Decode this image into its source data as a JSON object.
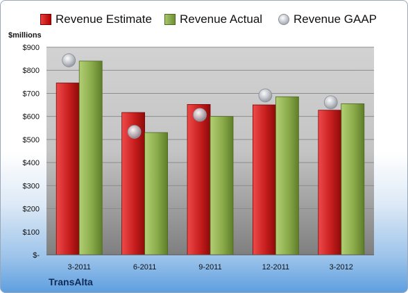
{
  "legend": {
    "estimate": "Revenue Estimate",
    "actual": "Revenue Actual",
    "gaap": "Revenue GAAP"
  },
  "unit_label": "$millions",
  "company": "TransAlta",
  "colors": {
    "estimate": "#c81e1e",
    "actual": "#8aab4a",
    "gaap": "#b8bcc4"
  },
  "chart_data": {
    "type": "bar",
    "categories": [
      "3-2011",
      "6-2011",
      "9-2011",
      "12-2011",
      "3-2012"
    ],
    "series": [
      {
        "name": "Revenue Estimate",
        "type": "bar",
        "values": [
          745,
          617,
          652,
          650,
          627
        ]
      },
      {
        "name": "Revenue Actual",
        "type": "bar",
        "values": [
          840,
          530,
          600,
          685,
          655
        ]
      },
      {
        "name": "Revenue GAAP",
        "type": "scatter",
        "values": [
          843,
          533,
          607,
          691,
          661
        ]
      }
    ],
    "ylabel": "$millions",
    "ylim": [
      0,
      900
    ],
    "yticks": [
      "$-",
      "$100",
      "$200",
      "$300",
      "$400",
      "$500",
      "$600",
      "$700",
      "$800",
      "$900"
    ],
    "grid": true,
    "legend_position": "top"
  }
}
